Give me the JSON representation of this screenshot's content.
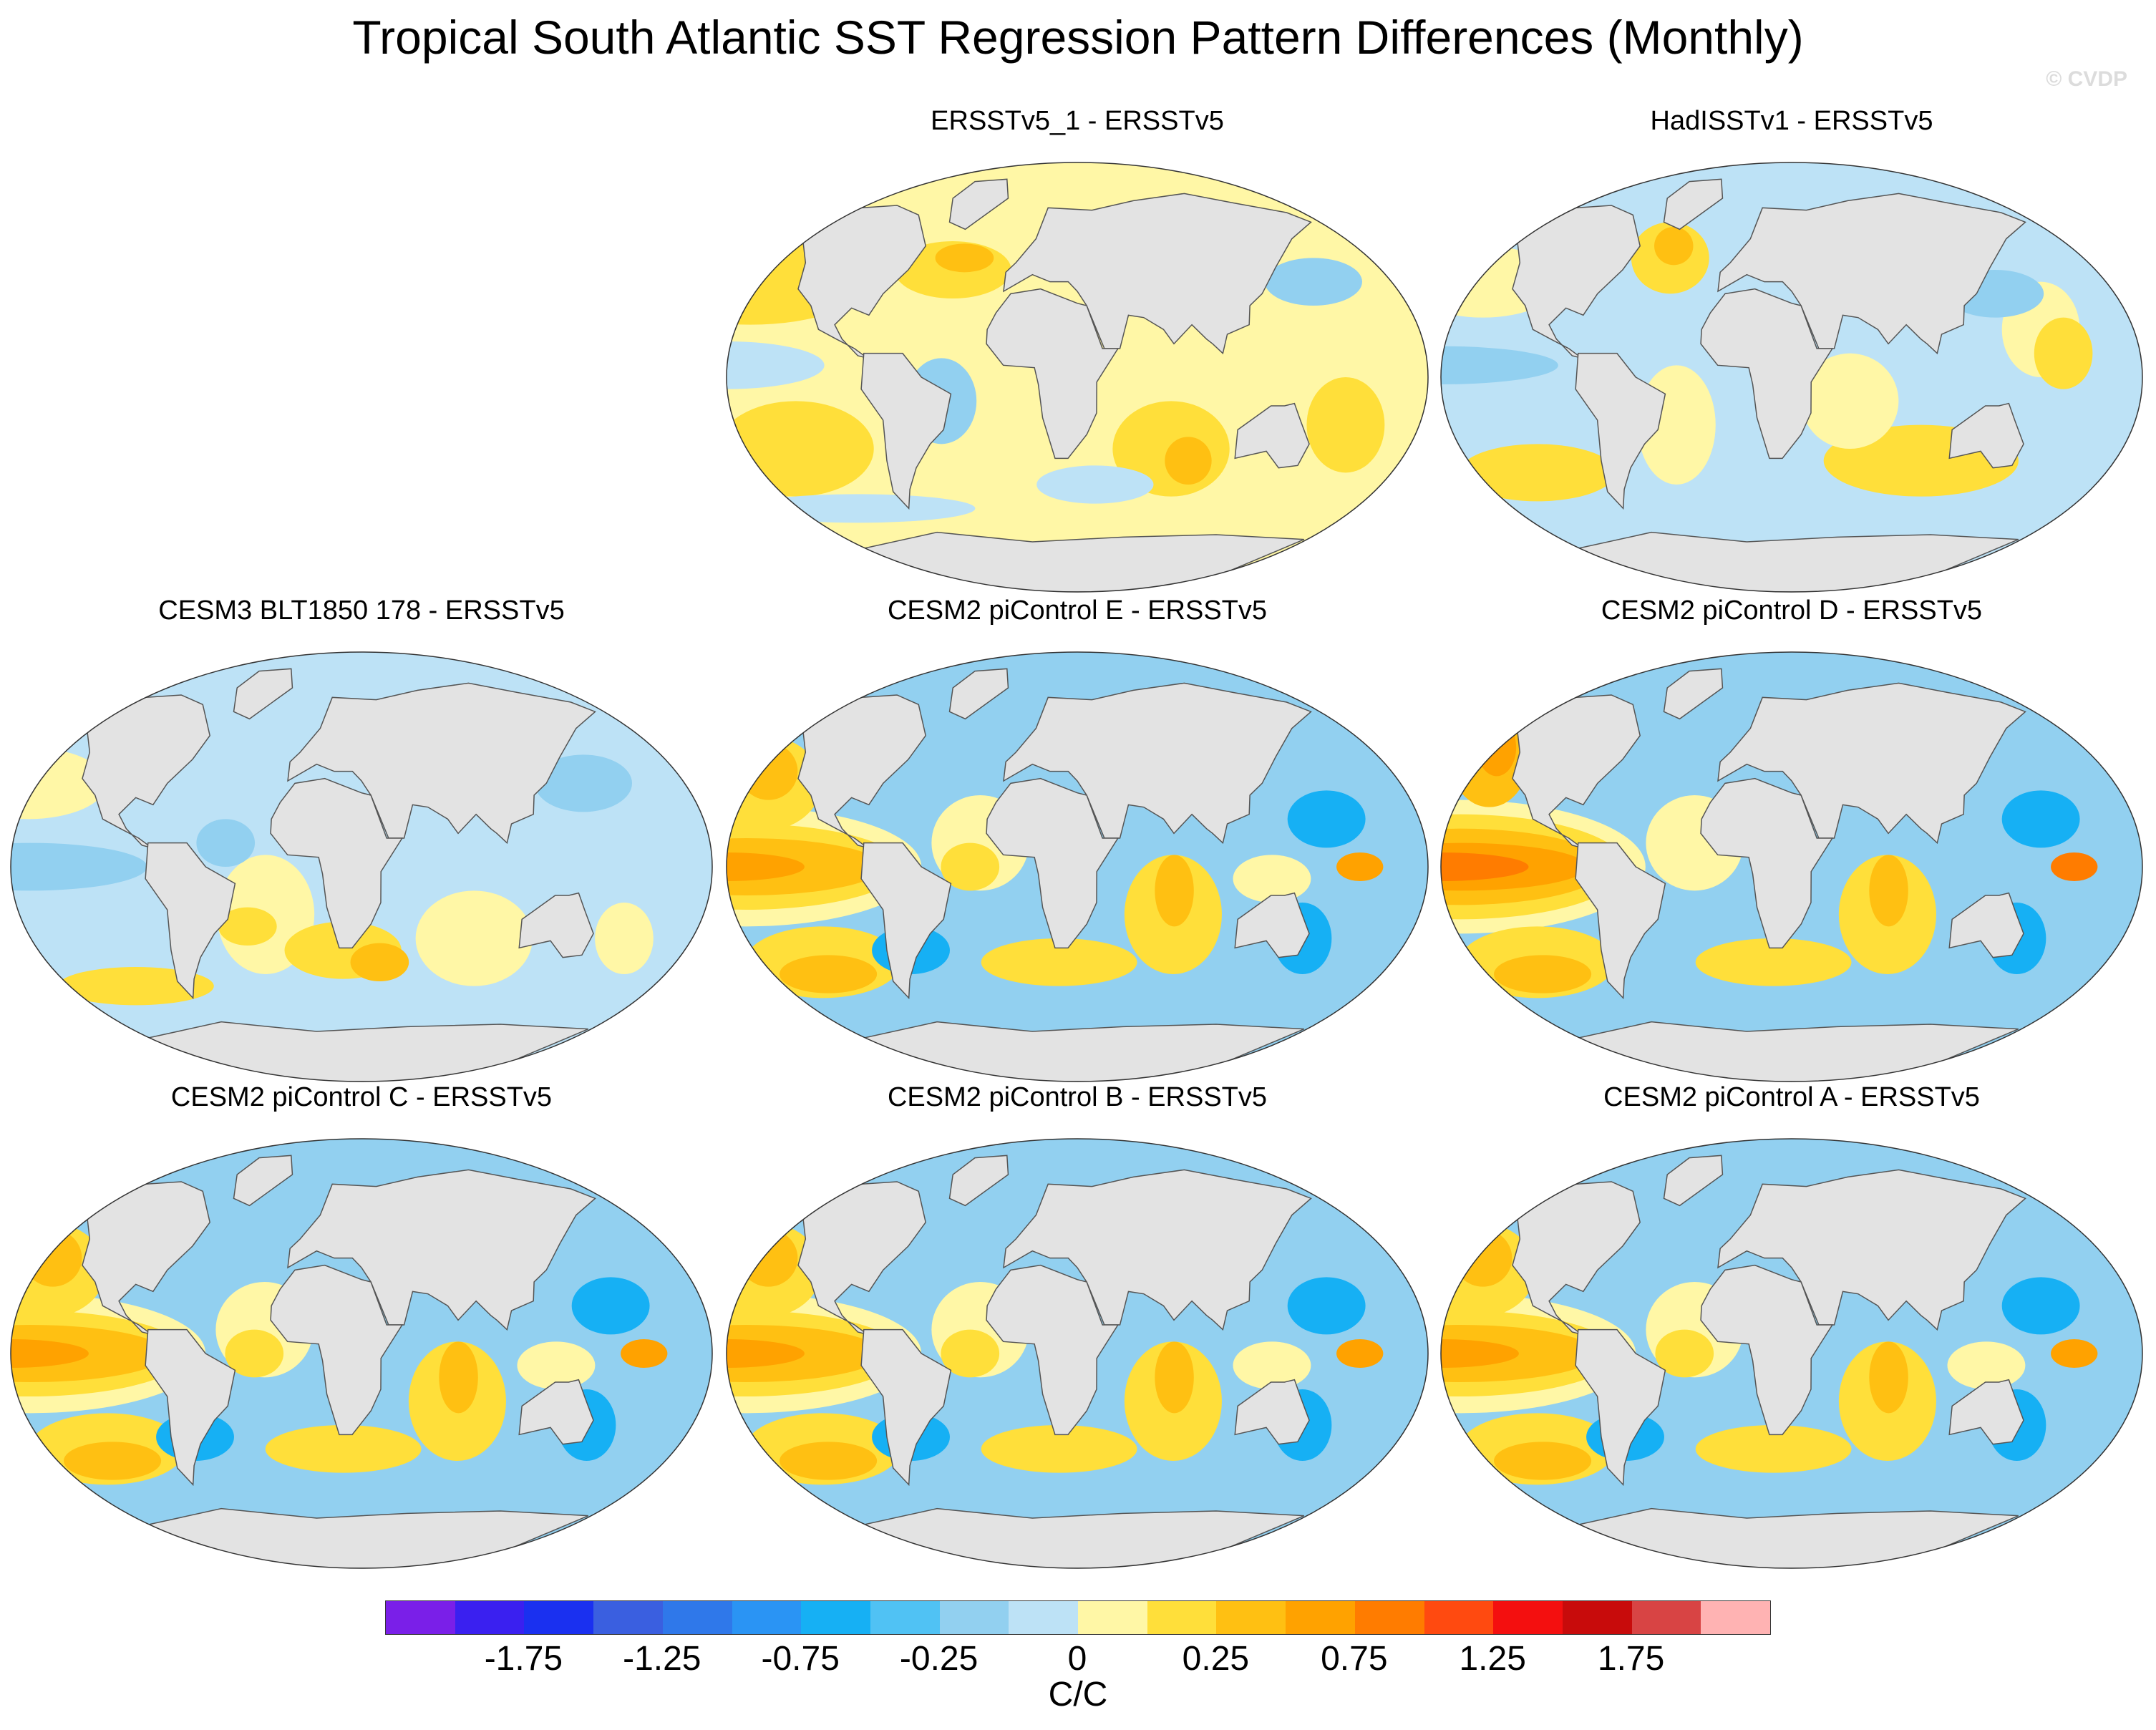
{
  "title": "Tropical South Atlantic SST Regression Pattern Differences (Monthly)",
  "watermark": "© CVDP",
  "panels": [
    {
      "title": "ERSSTv5_1 - ERSSTv5",
      "pattern": "obs-diff"
    },
    {
      "title": "HadISSTv1 - ERSSTv5",
      "pattern": "obs-diff-blue"
    },
    {
      "title": "CESM3 BLT1850 178 - ERSSTv5",
      "pattern": "model-weak"
    },
    {
      "title": "CESM2 piControl E - ERSSTv5",
      "pattern": "model-strong"
    },
    {
      "title": "CESM2 piControl D - ERSSTv5",
      "pattern": "model-strongest"
    },
    {
      "title": "CESM2 piControl C - ERSSTv5",
      "pattern": "model-strong"
    },
    {
      "title": "CESM2 piControl B - ERSSTv5",
      "pattern": "model-strong"
    },
    {
      "title": "CESM2 piControl A - ERSSTv5",
      "pattern": "model-strong"
    }
  ],
  "colorbar": {
    "unit": "C/C",
    "colors": [
      "#7a1fe8",
      "#3a20f0",
      "#1a30f0",
      "#3a5fe0",
      "#2f78ea",
      "#2a94f4",
      "#16b0f4",
      "#50c2f4",
      "#92d0f0",
      "#bde2f6",
      "#fff7a6",
      "#ffdf3a",
      "#ffc012",
      "#ffa200",
      "#ff7c00",
      "#ff4a10",
      "#f40f0f",
      "#c80b0b",
      "#d84444",
      "#ffb3b3"
    ],
    "tick_labels": [
      "-1.75",
      "-1.25",
      "-0.75",
      "-0.25",
      "0",
      "0.25",
      "0.75",
      "1.25",
      "1.75"
    ]
  }
}
